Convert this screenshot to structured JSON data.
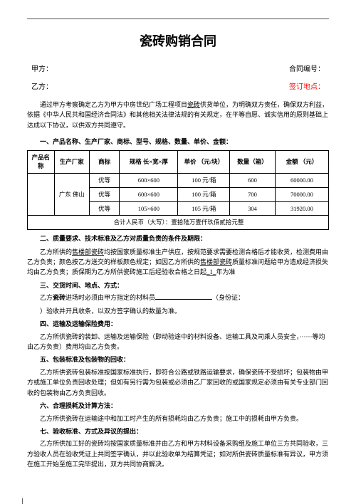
{
  "title": "瓷砖购销合同",
  "party_a_label": "甲方：",
  "contract_no_label": "合同编号：",
  "party_b_label": "乙方：",
  "sign_location_label": "签订地点：",
  "intro": "通过甲方考察确定乙方为甲方中房世纪广场工程项目",
  "intro_underline": "瓷砖",
  "intro_tail": "供货单位，为明确双方责任，确保双方利益，依据《中华人民共和国经济合同法》和其他相关法律法规的有关规定，在平等自愿、诚实信用的原则基础上达成以下协议，以供双方共同遵守。",
  "sec1": "一、产品名称、生产厂家、商标、型号、规格、数量、单价、金额：",
  "table": {
    "headers": [
      "产品名称",
      "生产厂家",
      "商标",
      "规格\n长×宽×厚",
      "单价\n（元/块）",
      "数量（箱）",
      "金额\n（元）"
    ],
    "maker": "广东\n佛山",
    "rows": [
      {
        "brand": "优等",
        "spec": "600×600",
        "price": "100 元/箱",
        "qty": "600",
        "amt": "60000.00"
      },
      {
        "brand": "优等",
        "spec": "600×600",
        "price": "100 元/箱",
        "qty": "700",
        "amt": "70000.00"
      },
      {
        "brand": "优等",
        "spec": "105×600",
        "price": "105 元/箱",
        "qty": "304",
        "amt": "31920.00"
      }
    ],
    "total_label": "合计人民币（大写）：壹拾陆万壹仟玖佰贰拾元整"
  },
  "sec2": "二、质量要求、技术标准及乙方对质量负责的条件及期限：",
  "p2a": "乙方所供的",
  "p2a_u1": "售楼部瓷砖",
  "p2a_mid": "均按国家质量标准生产供应，按规范要求需要检测合格后才能收货，检测费用由乙方负责；颜色按乙方送交的样板颜色规定；如因乙方所供的",
  "p2a_u2": "售楼部瓷砖",
  "p2a_tail": "质量标准问题给甲方造成经济损失均由乙方负责；质保期为乙方所供瓷砖施工后经验收合格之日起",
  "p2a_u3": "_1_",
  "p2a_end": "年为准",
  "sec3": "三、交货时间、地点、方式：",
  "p3a": "乙方",
  "p3a_b": "瓷砖",
  "p3a_mid": "进场时必须由甲方指定的材料员",
  "p3a_tail": "（身份证：",
  "p3b": "）验收并开具收条，以双方签字确认的数量为准。",
  "sec4": "四、运输及运输保险费用：",
  "p4": "乙方所供瓷砖的装卸、运输及运输保险（即动验途中的材料设备、运输工具及司乘人员安全，······等均由乙方负责）费用均由乙方负责。",
  "sec5": "五、包装标准及包装物的回收：",
  "p5": "乙方所供瓷砖包装标准按国家标准执行，即符合公路或铁路运输要求，确保瓷砖不受损坏；包装物由甲方或施工单位负责回收处理；但如有另行需为包装或必须由乙厂家回收的或国家规定必须由有关专业部门回收的包装物由乙方负责回收。",
  "sec6": "六、合理损耗及计算方法：",
  "p6": "乙方所供瓷砖在运输途中和加工时产生的所有损耗均由乙方负责；施工中的损耗由甲方负责。",
  "sec7": "七、验收标准、方式及异议的提出：",
  "p7": "乙方所供加工好的瓷砖均按国家质量标准并由乙方和甲方材料设备采购组及施工单位三方共同验收，三方验收人员在验收凭证上共同签字确认，并以此验收单为结算凭证；如对所供瓷砖质量标准有异议，甲方须在施工开始至施工完毕提出，双方共同协商解决。"
}
